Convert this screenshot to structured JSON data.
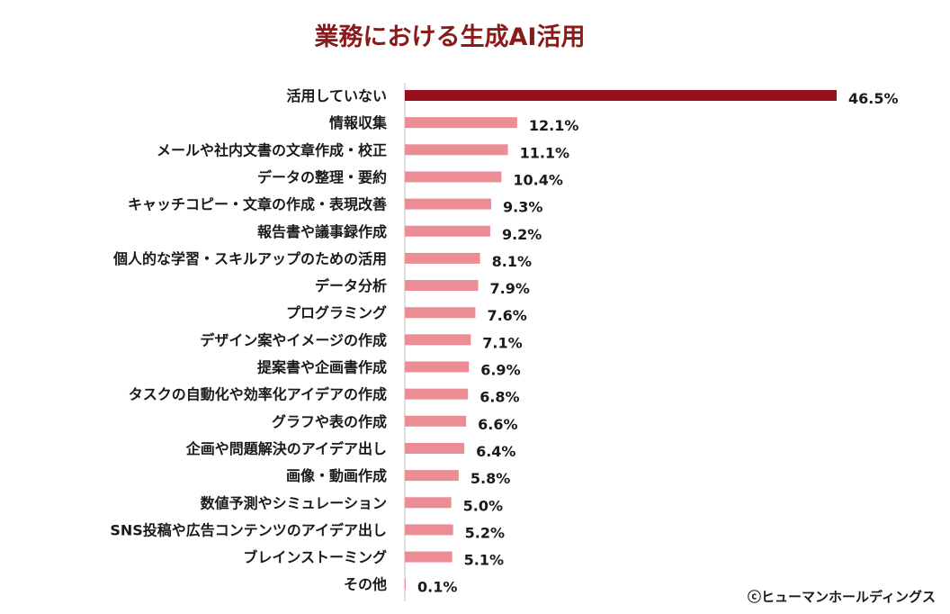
{
  "chart_data": {
    "type": "bar",
    "orientation": "horizontal",
    "title": "業務における生成AI活用",
    "categories": [
      "活用していない",
      "情報収集",
      "メールや社内文書の文章作成・校正",
      "データの整理・要約",
      "キャッチコピー・文章の作成・表現改善",
      "報告書や議事録作成",
      "個人的な学習・スキルアップのための活用",
      "データ分析",
      "プログラミング",
      "デザイン案やイメージの作成",
      "提案書や企画書作成",
      "タスクの自動化や効率化アイデアの作成",
      "グラフや表の作成",
      "企画や問題解決のアイデア出し",
      "画像・動画作成",
      "数値予測やシミュレーション",
      "SNS投稿や広告コンテンツのアイデア出し",
      "ブレインストーミング",
      "その他"
    ],
    "values": [
      46.5,
      12.1,
      11.1,
      10.4,
      9.3,
      9.2,
      8.1,
      7.9,
      7.6,
      7.1,
      6.9,
      6.8,
      6.6,
      6.4,
      5.8,
      5.0,
      5.2,
      5.1,
      0.1
    ],
    "value_labels": [
      "46.5%",
      "12.1%",
      "11.1%",
      "10.4%",
      "9.3%",
      "9.2%",
      "8.1%",
      "7.9%",
      "7.6%",
      "7.1%",
      "6.9%",
      "6.8%",
      "6.6%",
      "6.4%",
      "5.8%",
      "5.0%",
      "5.2%",
      "5.1%",
      "0.1%"
    ],
    "highlight_index": 0,
    "unit": "%",
    "xlim": [
      0,
      50
    ],
    "xlabel": "",
    "ylabel": "",
    "grid": false,
    "legend": "none",
    "colors": {
      "title": "#8b1a1a",
      "highlight_bar": "#960f1a",
      "bar": "#ec8d95",
      "axis": "#bfbfbf"
    }
  },
  "footer": {
    "copyright": "ⓒヒューマンホールディングス"
  }
}
